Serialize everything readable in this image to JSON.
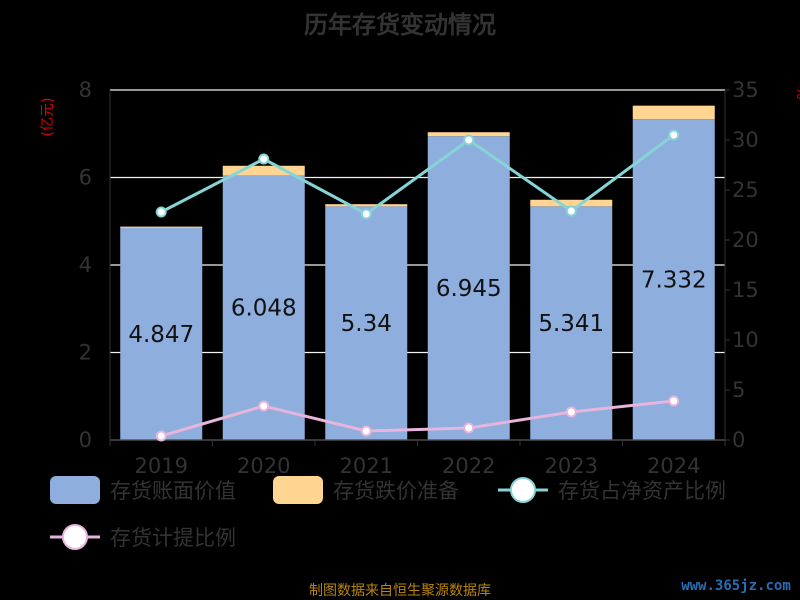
{
  "chart_data": {
    "type": "bar",
    "title": "历年存货变动情况",
    "categories": [
      "2019",
      "2020",
      "2021",
      "2022",
      "2023",
      "2024"
    ],
    "left_axis": {
      "unit_label": "(亿元)",
      "ylim": [
        0,
        8
      ],
      "ticks": [
        0,
        2,
        4,
        6,
        8
      ]
    },
    "right_axis": {
      "unit_label": "%",
      "ylim": [
        0,
        35
      ],
      "ticks": [
        0,
        5,
        10,
        15,
        20,
        25,
        30,
        35
      ]
    },
    "series": [
      {
        "name": "存货账面价值",
        "kind": "bar",
        "axis": "left",
        "color": "#8eaedd",
        "values": [
          4.847,
          6.048,
          5.34,
          6.945,
          5.341,
          7.332
        ],
        "labels": [
          "4.847",
          "6.048",
          "5.34",
          "6.945",
          "5.341",
          "7.332"
        ]
      },
      {
        "name": "存货跌价准备",
        "kind": "bar-stacked",
        "axis": "left",
        "color": "#ffd591",
        "values": [
          0.03,
          0.22,
          0.05,
          0.09,
          0.15,
          0.31
        ]
      },
      {
        "name": "存货占净资产比例",
        "kind": "line",
        "axis": "right",
        "color": "#86d4d6",
        "values": [
          22.8,
          28.1,
          22.6,
          30.0,
          22.9,
          30.5
        ]
      },
      {
        "name": "存货计提比例",
        "kind": "line",
        "axis": "right",
        "color": "#e7b4dc",
        "values": [
          0.4,
          3.4,
          0.9,
          1.2,
          2.8,
          3.9
        ]
      }
    ],
    "grid": true,
    "legend_position": "bottom"
  },
  "footer": {
    "source_text": "制图数据来自恒生聚源数据库",
    "watermark": "www.365jz.com"
  }
}
